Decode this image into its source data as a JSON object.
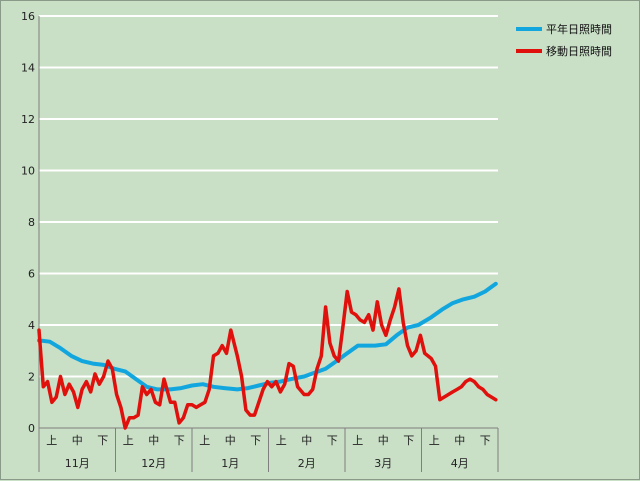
{
  "chart_data": {
    "type": "line",
    "title": "",
    "xlabel": "",
    "ylabel": "",
    "ylim": [
      0,
      16
    ],
    "yticks": [
      0,
      2,
      4,
      6,
      8,
      10,
      12,
      14,
      16
    ],
    "grid": true,
    "legend_position": "top-right",
    "month_labels": [
      "11月",
      "12月",
      "1月",
      "2月",
      "3月",
      "4月"
    ],
    "period_labels": [
      "上",
      "中",
      "下",
      "上",
      "中",
      "下",
      "上",
      "中",
      "下",
      "上",
      "中",
      "下",
      "上",
      "中",
      "下",
      "上",
      "中",
      "下"
    ],
    "series": [
      {
        "name": "平年日照時間",
        "color": "#12a6df",
        "x": [
          0,
          5,
          10,
          15,
          20,
          25,
          30,
          35,
          40,
          45,
          50,
          55,
          61,
          66,
          71,
          76,
          81,
          86,
          92,
          97,
          102,
          107,
          112,
          117,
          123,
          128,
          133,
          138,
          143,
          148,
          151,
          156,
          161,
          166,
          171,
          176,
          182,
          187,
          192,
          197,
          202,
          207,
          212
        ],
        "values": [
          3.4,
          3.35,
          3.1,
          2.8,
          2.6,
          2.5,
          2.45,
          2.3,
          2.2,
          1.9,
          1.6,
          1.5,
          1.5,
          1.55,
          1.65,
          1.7,
          1.6,
          1.55,
          1.5,
          1.55,
          1.65,
          1.75,
          1.8,
          1.9,
          2.0,
          2.15,
          2.3,
          2.6,
          2.9,
          3.2,
          3.2,
          3.2,
          3.25,
          3.6,
          3.9,
          4.0,
          4.3,
          4.6,
          4.85,
          5.0,
          5.1,
          5.3,
          5.6
        ]
      },
      {
        "name": "移動日照時間",
        "color": "#e0100c",
        "x": [
          0,
          2,
          4,
          6,
          8,
          10,
          12,
          14,
          16,
          18,
          20,
          22,
          24,
          26,
          28,
          30,
          32,
          34,
          36,
          38,
          40,
          42,
          44,
          46,
          48,
          50,
          52,
          54,
          56,
          58,
          61,
          63,
          65,
          67,
          69,
          71,
          73,
          75,
          77,
          79,
          81,
          83,
          85,
          87,
          89,
          92,
          94,
          96,
          98,
          100,
          102,
          104,
          106,
          108,
          110,
          112,
          114,
          116,
          118,
          120,
          123,
          125,
          127,
          129,
          131,
          133,
          135,
          137,
          139,
          141,
          143,
          145,
          147,
          149,
          151,
          153,
          155,
          157,
          159,
          161,
          163,
          165,
          167,
          169,
          171,
          173,
          175,
          177,
          179,
          182,
          184,
          186,
          188,
          190,
          192,
          194,
          196,
          198,
          200,
          202,
          204,
          206,
          208,
          210,
          212
        ],
        "values": [
          3.8,
          1.6,
          1.8,
          1.0,
          1.2,
          2.0,
          1.3,
          1.7,
          1.4,
          0.8,
          1.5,
          1.8,
          1.4,
          2.1,
          1.7,
          2.0,
          2.6,
          2.3,
          1.3,
          0.8,
          0.0,
          0.4,
          0.4,
          0.5,
          1.6,
          1.3,
          1.5,
          1.0,
          0.9,
          1.9,
          1.0,
          1.0,
          0.2,
          0.4,
          0.9,
          0.9,
          0.8,
          0.9,
          1.0,
          1.5,
          2.8,
          2.9,
          3.2,
          2.9,
          3.8,
          2.8,
          2.0,
          0.7,
          0.5,
          0.5,
          1.0,
          1.5,
          1.8,
          1.6,
          1.8,
          1.4,
          1.7,
          2.5,
          2.4,
          1.6,
          1.3,
          1.3,
          1.5,
          2.3,
          2.8,
          4.7,
          3.3,
          2.8,
          2.6,
          3.9,
          5.3,
          4.5,
          4.4,
          4.2,
          4.1,
          4.4,
          3.8,
          4.9,
          4.0,
          3.6,
          4.2,
          4.7,
          5.4,
          4.1,
          3.2,
          2.8,
          3.0,
          3.6,
          2.9,
          2.7,
          2.4,
          1.1,
          1.2,
          1.3,
          1.4,
          1.5,
          1.6,
          1.8,
          1.9,
          1.8,
          1.6,
          1.5,
          1.3,
          1.2,
          1.1
        ]
      }
    ]
  }
}
